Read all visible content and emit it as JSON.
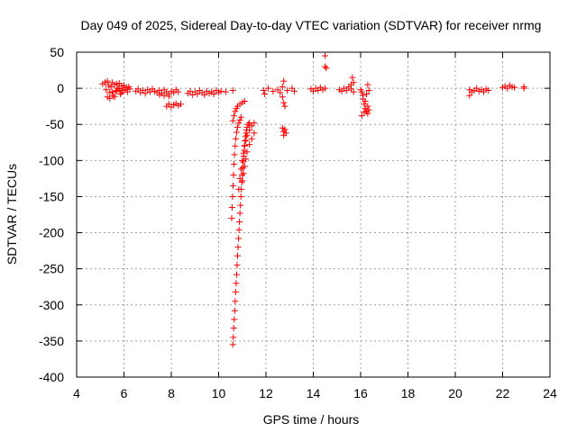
{
  "chart_data": {
    "type": "scatter",
    "title": "Day 049 of 2025, Sidereal Day-to-day VTEC variation (SDTVAR) for receiver nrmg",
    "xlabel": "GPS time / hours",
    "ylabel": "SDTVAR / TECUs",
    "xlim": [
      4,
      24
    ],
    "ylim": [
      -400,
      50
    ],
    "xticks": [
      4,
      6,
      8,
      10,
      12,
      14,
      16,
      18,
      20,
      22,
      24
    ],
    "yticks": [
      50,
      0,
      -50,
      -100,
      -150,
      -200,
      -250,
      -300,
      -350,
      -400
    ],
    "grid": true,
    "legend": "none",
    "marker": "+",
    "color": "#ff0000",
    "series": [
      {
        "name": "SDTVAR",
        "points": [
          [
            5.1,
            6
          ],
          [
            5.2,
            8
          ],
          [
            5.25,
            -2
          ],
          [
            5.3,
            10
          ],
          [
            5.35,
            4
          ],
          [
            5.4,
            -6
          ],
          [
            5.45,
            2
          ],
          [
            5.5,
            8
          ],
          [
            5.55,
            -10
          ],
          [
            5.6,
            5
          ],
          [
            5.65,
            -4
          ],
          [
            5.7,
            6
          ],
          [
            5.75,
            0
          ],
          [
            5.8,
            7
          ],
          [
            5.85,
            -8
          ],
          [
            5.9,
            3
          ],
          [
            5.95,
            -3
          ],
          [
            6.0,
            4
          ],
          [
            6.05,
            -2
          ],
          [
            6.1,
            1
          ],
          [
            6.15,
            -5
          ],
          [
            6.2,
            2
          ],
          [
            6.25,
            -1
          ],
          [
            5.3,
            -12
          ],
          [
            5.4,
            -14
          ],
          [
            5.5,
            -5
          ],
          [
            5.6,
            -12
          ],
          [
            5.7,
            -3
          ],
          [
            5.8,
            -1
          ],
          [
            5.9,
            -6
          ],
          [
            6.5,
            -4
          ],
          [
            6.6,
            -1
          ],
          [
            6.7,
            -6
          ],
          [
            6.8,
            -3
          ],
          [
            6.9,
            -7
          ],
          [
            7.0,
            -2
          ],
          [
            7.1,
            -5
          ],
          [
            7.2,
            -1
          ],
          [
            7.3,
            -4
          ],
          [
            7.4,
            -6
          ],
          [
            7.5,
            -3
          ],
          [
            7.6,
            -7
          ],
          [
            7.7,
            -2
          ],
          [
            7.8,
            -5
          ],
          [
            7.9,
            -8
          ],
          [
            8.0,
            -4
          ],
          [
            8.1,
            -6
          ],
          [
            8.2,
            -2
          ],
          [
            8.3,
            -5
          ],
          [
            7.5,
            -9
          ],
          [
            7.7,
            -10
          ],
          [
            7.9,
            -11
          ],
          [
            7.8,
            -25
          ],
          [
            7.9,
            -22
          ],
          [
            8.0,
            -26
          ],
          [
            8.1,
            -23
          ],
          [
            8.2,
            -21
          ],
          [
            8.3,
            -24
          ],
          [
            8.4,
            -22
          ],
          [
            8.7,
            -7
          ],
          [
            8.8,
            -4
          ],
          [
            8.9,
            -9
          ],
          [
            9.0,
            -5
          ],
          [
            9.1,
            -8
          ],
          [
            9.2,
            -3
          ],
          [
            9.3,
            -6
          ],
          [
            9.4,
            -9
          ],
          [
            9.5,
            -4
          ],
          [
            9.6,
            -7
          ],
          [
            9.7,
            -5
          ],
          [
            9.8,
            -8
          ],
          [
            9.9,
            -3
          ],
          [
            10.0,
            -6
          ],
          [
            10.1,
            -4
          ],
          [
            10.3,
            -5
          ],
          [
            10.6,
            -3
          ],
          [
            10.6,
            -355
          ],
          [
            10.62,
            -345
          ],
          [
            10.64,
            -332
          ],
          [
            10.66,
            -320
          ],
          [
            10.68,
            -308
          ],
          [
            10.7,
            -295
          ],
          [
            10.72,
            -282
          ],
          [
            10.74,
            -270
          ],
          [
            10.76,
            -258
          ],
          [
            10.78,
            -245
          ],
          [
            10.8,
            -232
          ],
          [
            10.82,
            -220
          ],
          [
            10.84,
            -208
          ],
          [
            10.86,
            -196
          ],
          [
            10.88,
            -185
          ],
          [
            10.9,
            -173
          ],
          [
            10.92,
            -162
          ],
          [
            10.94,
            -150
          ],
          [
            10.96,
            -140
          ],
          [
            10.98,
            -130
          ],
          [
            11.0,
            -120
          ],
          [
            11.02,
            -110
          ],
          [
            11.04,
            -102
          ],
          [
            11.06,
            -94
          ],
          [
            11.08,
            -86
          ],
          [
            11.1,
            -79
          ],
          [
            11.12,
            -73
          ],
          [
            11.14,
            -67
          ],
          [
            11.16,
            -62
          ],
          [
            11.18,
            -58
          ],
          [
            11.2,
            -54
          ],
          [
            11.25,
            -50
          ],
          [
            11.3,
            -48
          ],
          [
            10.55,
            -180
          ],
          [
            10.57,
            -165
          ],
          [
            10.59,
            -150
          ],
          [
            10.61,
            -135
          ],
          [
            10.63,
            -120
          ],
          [
            10.65,
            -105
          ],
          [
            10.67,
            -92
          ],
          [
            10.7,
            -80
          ],
          [
            10.73,
            -70
          ],
          [
            10.76,
            -61
          ],
          [
            10.8,
            -54
          ],
          [
            10.85,
            -48
          ],
          [
            10.9,
            -44
          ],
          [
            10.95,
            -40
          ],
          [
            10.6,
            -45
          ],
          [
            10.65,
            -38
          ],
          [
            10.7,
            -32
          ],
          [
            10.75,
            -28
          ],
          [
            10.8,
            -25
          ],
          [
            10.9,
            -22
          ],
          [
            11.0,
            -20
          ],
          [
            11.1,
            -18
          ],
          [
            10.85,
            -140
          ],
          [
            10.9,
            -125
          ],
          [
            10.95,
            -112
          ],
          [
            11.0,
            -100
          ],
          [
            11.05,
            -90
          ],
          [
            11.1,
            -80
          ],
          [
            11.15,
            -72
          ],
          [
            11.2,
            -65
          ],
          [
            11.3,
            -58
          ],
          [
            11.4,
            -52
          ],
          [
            11.5,
            -48
          ],
          [
            11.0,
            -128
          ],
          [
            11.05,
            -118
          ],
          [
            11.1,
            -108
          ],
          [
            11.15,
            -98
          ],
          [
            11.2,
            -88
          ],
          [
            11.3,
            -78
          ],
          [
            11.4,
            -70
          ],
          [
            11.5,
            -62
          ],
          [
            11.9,
            -3
          ],
          [
            11.95,
            -8
          ],
          [
            12.1,
            0
          ],
          [
            12.3,
            -4
          ],
          [
            12.5,
            -2
          ],
          [
            12.6,
            -6
          ],
          [
            12.7,
            2
          ],
          [
            12.75,
            10
          ],
          [
            12.7,
            -12
          ],
          [
            12.75,
            -20
          ],
          [
            12.8,
            -25
          ],
          [
            12.9,
            -3
          ],
          [
            13.1,
            0
          ],
          [
            13.2,
            -4
          ],
          [
            12.7,
            -55
          ],
          [
            12.75,
            -60
          ],
          [
            12.8,
            -57
          ],
          [
            12.85,
            -62
          ],
          [
            12.75,
            -65
          ],
          [
            13.9,
            -1
          ],
          [
            14.0,
            -4
          ],
          [
            14.1,
            0
          ],
          [
            14.2,
            -3
          ],
          [
            14.3,
            1
          ],
          [
            14.4,
            -2
          ],
          [
            14.5,
            0
          ],
          [
            14.5,
            30
          ],
          [
            14.55,
            28
          ],
          [
            14.5,
            45
          ],
          [
            15.1,
            -2
          ],
          [
            15.2,
            -4
          ],
          [
            15.3,
            0
          ],
          [
            15.4,
            -3
          ],
          [
            15.5,
            2
          ],
          [
            15.6,
            -1
          ],
          [
            15.65,
            15
          ],
          [
            15.7,
            8
          ],
          [
            15.7,
            -5
          ],
          [
            15.6,
            5
          ],
          [
            16.0,
            -2
          ],
          [
            16.05,
            -5
          ],
          [
            16.1,
            -15
          ],
          [
            16.15,
            -22
          ],
          [
            16.2,
            -28
          ],
          [
            16.25,
            -32
          ],
          [
            16.3,
            -25
          ],
          [
            16.35,
            -30
          ],
          [
            16.1,
            -10
          ],
          [
            16.2,
            -18
          ],
          [
            16.3,
            -35
          ],
          [
            16.05,
            -38
          ],
          [
            16.15,
            -33
          ],
          [
            16.25,
            -8
          ],
          [
            16.35,
            -3
          ],
          [
            16.3,
            5
          ],
          [
            20.6,
            -2
          ],
          [
            20.7,
            -5
          ],
          [
            20.6,
            -10
          ],
          [
            20.8,
            -3
          ],
          [
            20.9,
            0
          ],
          [
            21.0,
            -4
          ],
          [
            21.1,
            -2
          ],
          [
            21.2,
            -5
          ],
          [
            21.3,
            -1
          ],
          [
            21.4,
            -3
          ],
          [
            22.0,
            1
          ],
          [
            22.1,
            3
          ],
          [
            22.2,
            0
          ],
          [
            22.3,
            4
          ],
          [
            22.4,
            2
          ],
          [
            22.5,
            1
          ],
          [
            22.9,
            2
          ],
          [
            22.9,
            0
          ]
        ]
      }
    ]
  }
}
